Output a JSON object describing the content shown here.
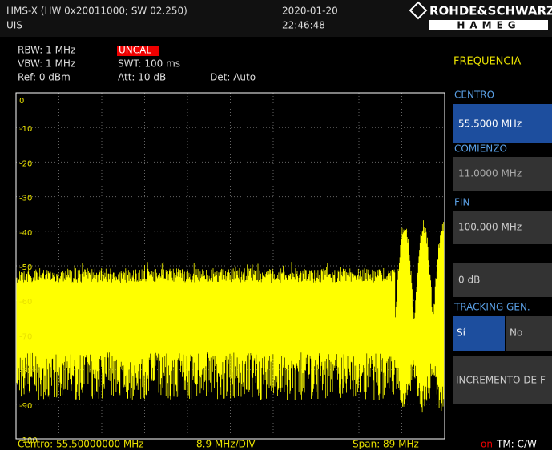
{
  "header": {
    "device": "HMS-X (HW 0x20011000; SW 02.250)",
    "mode": "UIS",
    "date": "2020-01-20",
    "time": "22:46:48",
    "brand": "ROHDE&SCHWARZ",
    "sub_brand": "HAMEG"
  },
  "settings": {
    "rbw": "RBW: 1 MHz",
    "vbw": "VBW: 1 MHz",
    "ref": "Ref: 0 dBm",
    "uncal": "UNCAL",
    "swt": "SWT: 100 ms",
    "att": "Att: 10 dB",
    "det": "Det: Auto"
  },
  "plot": {
    "y_labels": [
      "0",
      "-10",
      "-20",
      "-30",
      "-40",
      "-50",
      "-60",
      "-70",
      "-80",
      "-90",
      "-100"
    ]
  },
  "footer": {
    "center": "Centro: 55.50000000 MHz",
    "div": "8.9 MHz/DIV",
    "span": "Span: 89 MHz",
    "on": "on",
    "tm": "TM: C/W"
  },
  "menu": {
    "title": "FREQUENCIA",
    "center_label": "CENTRO",
    "center_value": "55.5000 MHz",
    "start_label": "COMIENZO",
    "start_value": "11.0000 MHz",
    "stop_label": "FIN",
    "stop_value": "100.000 MHz",
    "level_value": "0 dB",
    "tracking_label": "TRACKING GEN.",
    "yes": "Sí",
    "no": "No",
    "increment": "INCREMENTO DE F"
  }
}
